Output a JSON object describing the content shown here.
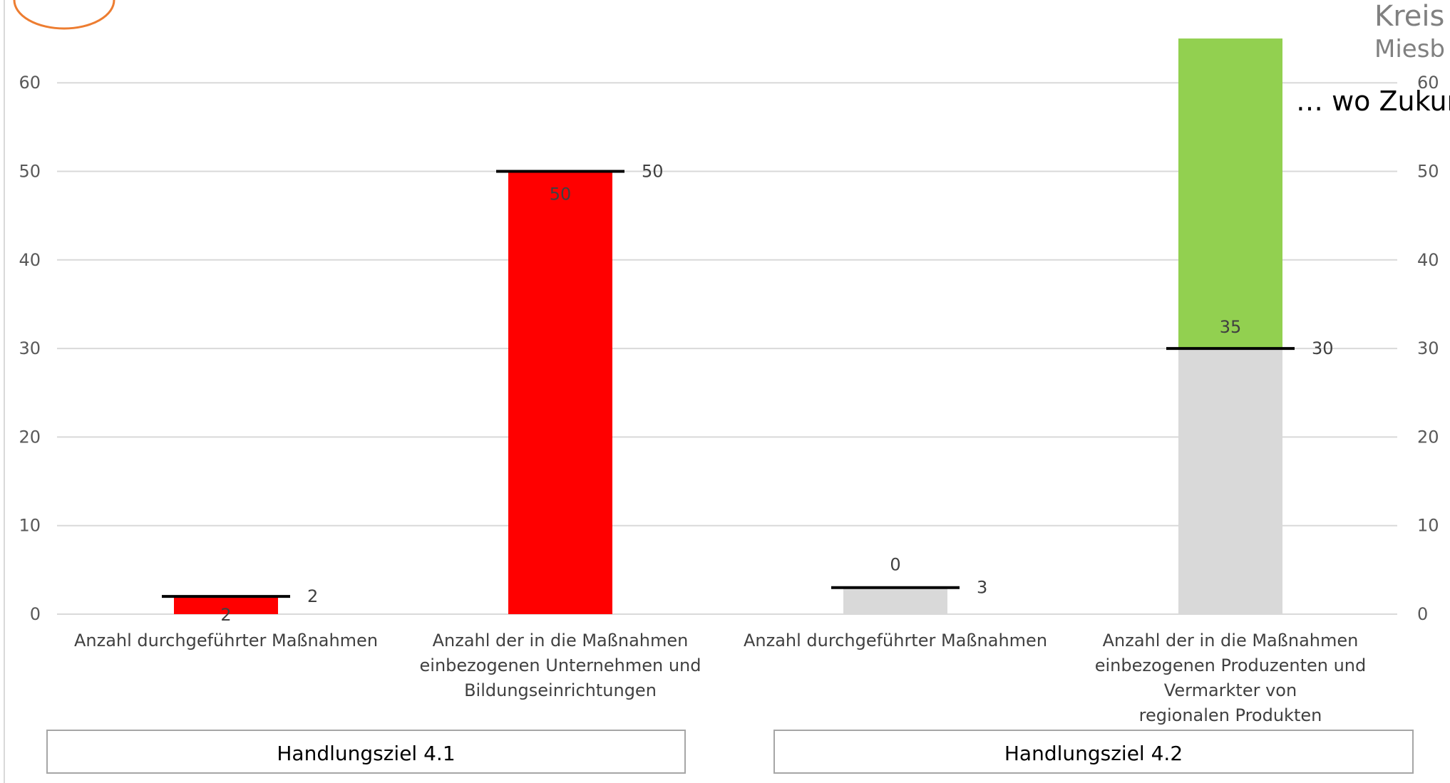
{
  "branding": {
    "title": "Kreis",
    "subtitle": "Miesb",
    "slogan": "… wo Zukun",
    "logo_color": "#ED7D31"
  },
  "chart_data": {
    "type": "bar",
    "stacked": true,
    "ylim": [
      0,
      65
    ],
    "yticks": [
      0,
      10,
      20,
      30,
      40,
      50,
      60
    ],
    "grid": true,
    "axes": "left-and-right",
    "categories": [
      [
        "Anzahl durchgeführter Maßnahmen"
      ],
      [
        "Anzahl der in die Maßnahmen",
        "einbezogenen Unternehmen und",
        "Bildungseinrichtungen"
      ],
      [
        "Anzahl durchgeführter Maßnahmen"
      ],
      [
        "Anzahl der in die Maßnahmen",
        "einbezogenen Produzenten und",
        "Vermarkter von",
        "regionalen Produkten"
      ]
    ],
    "groups": [
      {
        "label": "Handlungsziel 4.1",
        "categories": [
          0,
          1
        ]
      },
      {
        "label": "Handlungsziel 4.2",
        "categories": [
          2,
          3
        ]
      }
    ],
    "bars": [
      {
        "actual": 2,
        "target": 2,
        "segments": [
          {
            "value": 2,
            "color": "#FF0000"
          }
        ],
        "actual_label": "2",
        "target_label": "2"
      },
      {
        "actual": 50,
        "target": 50,
        "segments": [
          {
            "value": 50,
            "color": "#FF0000"
          }
        ],
        "actual_label": "50",
        "target_label": "50"
      },
      {
        "actual": 0,
        "target": 3,
        "segments": [
          {
            "value": 3,
            "color": "#D9D9D9"
          }
        ],
        "actual_label": "0",
        "target_label": "3"
      },
      {
        "actual": 35,
        "target": 30,
        "segments": [
          {
            "value": 30,
            "color": "#D9D9D9"
          },
          {
            "value": 35,
            "color": "#92D050"
          }
        ],
        "actual_label": "35",
        "target_label": "30"
      }
    ],
    "colors": {
      "grid": "#D9D9D9",
      "target_line": "#000000",
      "group_box": "#A6A6A6"
    }
  }
}
